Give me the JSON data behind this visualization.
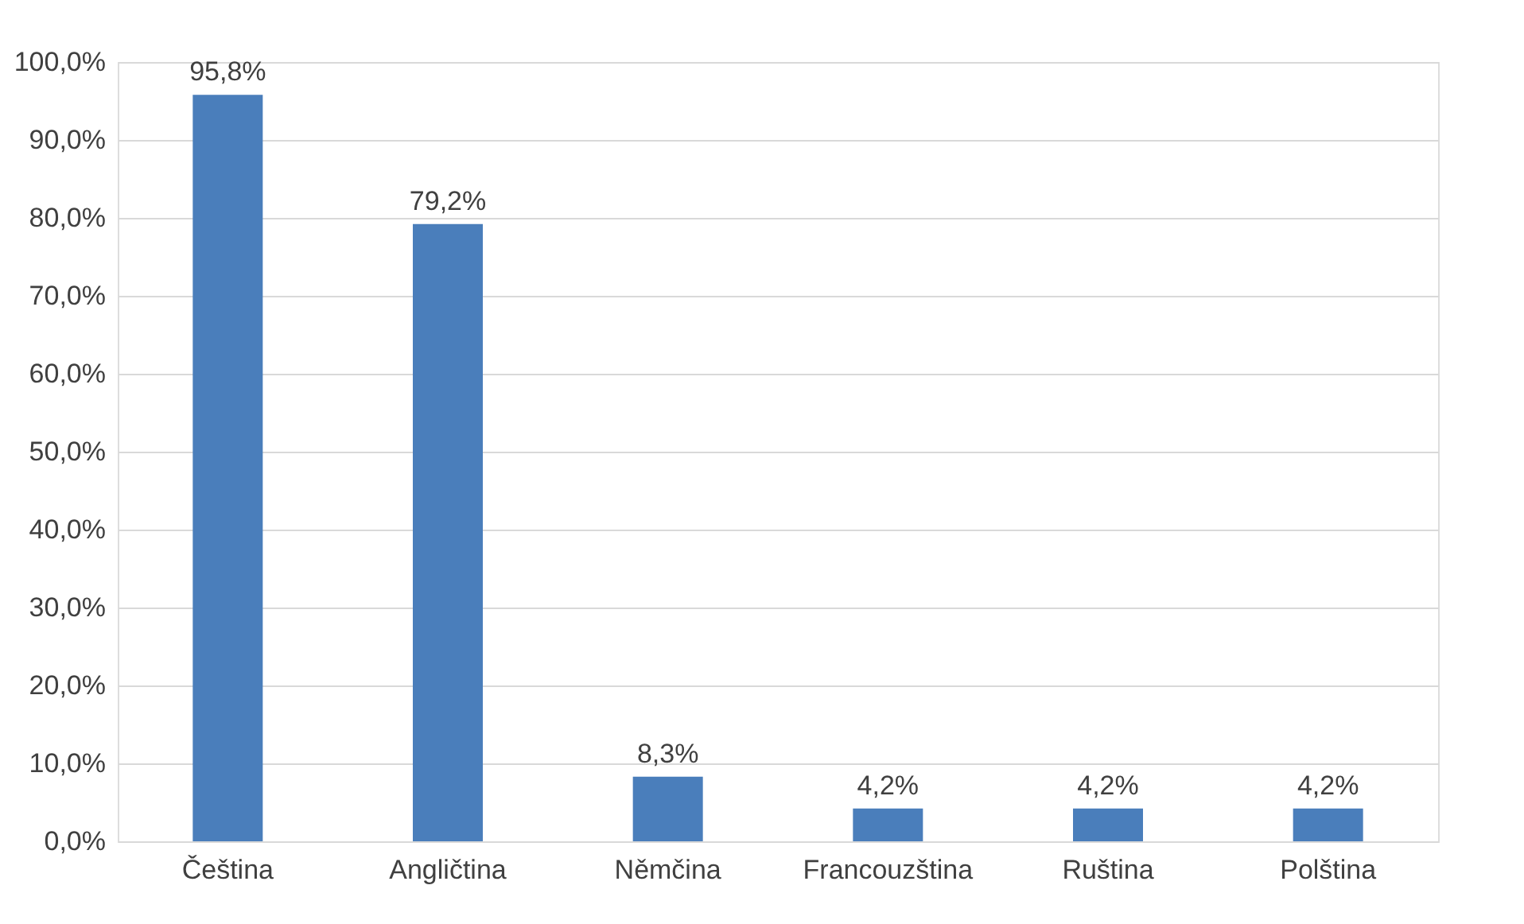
{
  "chart_data": {
    "type": "bar",
    "categories": [
      "Čeština",
      "Angličtina",
      "Němčina",
      "Francouzština",
      "Ruština",
      "Polština"
    ],
    "values": [
      95.8,
      79.2,
      8.3,
      4.2,
      4.2,
      4.2
    ],
    "color": "#4a7ebb",
    "value_labels": [
      "95,8%",
      "79,2%",
      "8,3%",
      "4,2%",
      "4,2%",
      "4,2%"
    ],
    "ylim": [
      0,
      100
    ],
    "yticks": [
      {
        "value": 0,
        "label": "0,0%"
      },
      {
        "value": 10,
        "label": "10,0%"
      },
      {
        "value": 20,
        "label": "20,0%"
      },
      {
        "value": 30,
        "label": "30,0%"
      },
      {
        "value": 40,
        "label": "40,0%"
      },
      {
        "value": 50,
        "label": "50,0%"
      },
      {
        "value": 60,
        "label": "60,0%"
      },
      {
        "value": 70,
        "label": "70,0%"
      },
      {
        "value": 80,
        "label": "80,0%"
      },
      {
        "value": 90,
        "label": "90,0%"
      },
      {
        "value": 100,
        "label": "100,0%"
      }
    ],
    "grid": "y"
  }
}
